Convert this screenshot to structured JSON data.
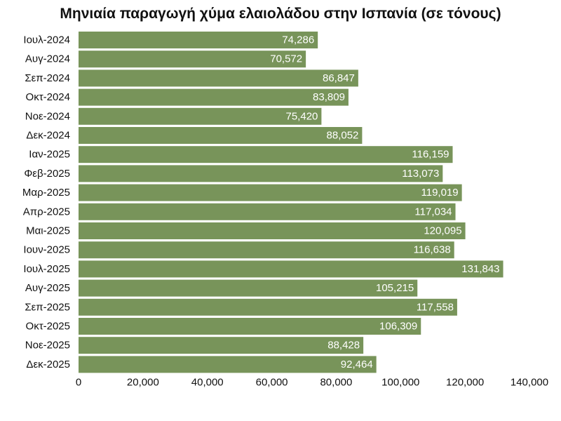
{
  "chart_data": {
    "type": "bar",
    "orientation": "horizontal",
    "title": "Μηνιαία παραγωγή χύμα ελαιολάδου στην Ισπανία (σε τόνους)",
    "xlabel": "",
    "ylabel": "",
    "categories": [
      "Ιουλ-2024",
      "Αυγ-2024",
      "Σεπ-2024",
      "Οκτ-2024",
      "Νοε-2024",
      "Δεκ-2024",
      "Ιαν-2025",
      "Φεβ-2025",
      "Μαρ-2025",
      "Απρ-2025",
      "Μαι-2025",
      "Ιουν-2025",
      "Ιουλ-2025",
      "Αυγ-2025",
      "Σεπ-2025",
      "Οκτ-2025",
      "Νοε-2025",
      "Δεκ-2025"
    ],
    "values": [
      74286,
      70572,
      86847,
      83809,
      75420,
      88052,
      116159,
      113073,
      119019,
      117034,
      120095,
      116638,
      131843,
      105215,
      117558,
      106309,
      88428,
      92464
    ],
    "value_labels": [
      "74,286",
      "70,572",
      "86,847",
      "83,809",
      "75,420",
      "88,052",
      "116,159",
      "113,073",
      "119,019",
      "117,034",
      "120,095",
      "116,638",
      "131,843",
      "105,215",
      "117,558",
      "106,309",
      "88,428",
      "92,464"
    ],
    "xlim": [
      0,
      140000
    ],
    "x_ticks": [
      0,
      20000,
      40000,
      60000,
      80000,
      100000,
      120000,
      140000
    ],
    "x_tick_labels": [
      "0",
      "20,000",
      "40,000",
      "60,000",
      "80,000",
      "100,000",
      "120,000",
      "140,000"
    ],
    "grid": false,
    "legend": "none",
    "bar_color": "#78945a",
    "value_label_color": "#ffffff"
  }
}
